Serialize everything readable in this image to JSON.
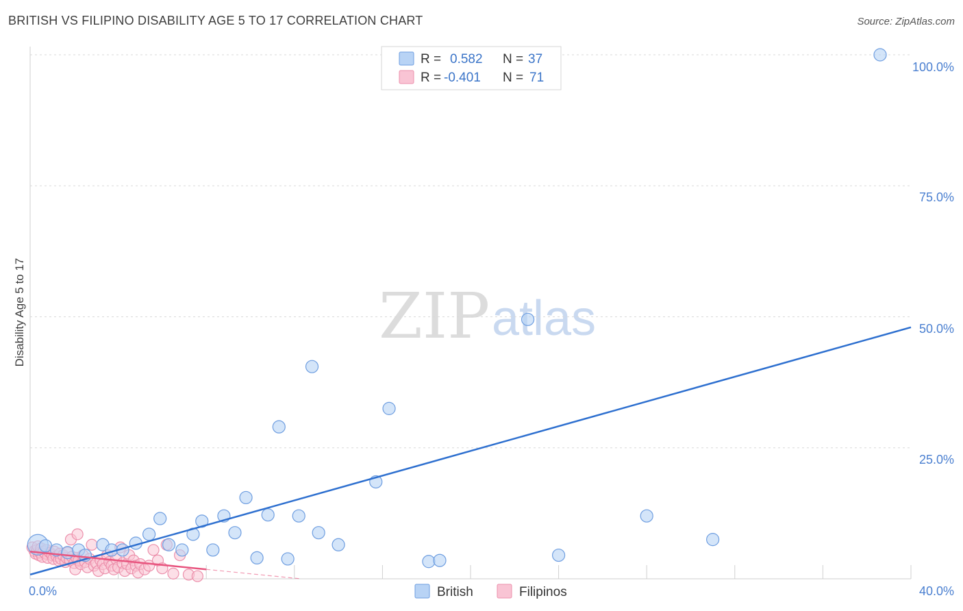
{
  "header": {
    "title": "BRITISH VS FILIPINO DISABILITY AGE 5 TO 17 CORRELATION CHART",
    "source": "Source: ZipAtlas.com"
  },
  "watermark": {
    "zip": "ZIP",
    "atlas": "atlas"
  },
  "legend_top": [
    {
      "r_label": "R =",
      "r_value": "0.582",
      "n_label": "N =",
      "n_value": "37"
    },
    {
      "r_label": "R =",
      "r_value": "-0.401",
      "n_label": "N =",
      "n_value": "71"
    }
  ],
  "legend_bottom": [
    {
      "label": "British"
    },
    {
      "label": "Filipinos"
    }
  ],
  "colors": {
    "british_fill": "#b8d3f5",
    "british_stroke": "#6d9de0",
    "british_line": "#2d6fcf",
    "filipino_fill": "#f9c4d4",
    "filipino_stroke": "#ec8fab",
    "filipino_line": "#e8557f",
    "grid": "#d8d8d8",
    "axis_label": "#4a7fd0"
  },
  "chart_data": {
    "type": "scatter",
    "title": "BRITISH VS FILIPINO DISABILITY AGE 5 TO 17 CORRELATION CHART",
    "xlabel": "",
    "ylabel": "Disability Age 5 to 17",
    "xlim": [
      0,
      40
    ],
    "ylim": [
      0,
      100
    ],
    "x_tick_labels": [
      "0.0%",
      "40.0%"
    ],
    "y_ticks": [
      25,
      50,
      75,
      100
    ],
    "y_tick_labels": [
      "25.0%",
      "50.0%",
      "75.0%",
      "100.0%"
    ],
    "series": [
      {
        "name": "British",
        "r": 0.582,
        "n": 37,
        "trend": {
          "x": [
            0,
            40
          ],
          "y": [
            0.8,
            48.0
          ]
        },
        "points": [
          {
            "x": 0.35,
            "y": 6.5,
            "s": 2
          },
          {
            "x": 0.7,
            "y": 6.3,
            "s": 1
          },
          {
            "x": 1.2,
            "y": 5.5,
            "s": 1
          },
          {
            "x": 1.7,
            "y": 5.0,
            "s": 1
          },
          {
            "x": 2.2,
            "y": 5.5,
            "s": 1
          },
          {
            "x": 3.3,
            "y": 6.5,
            "s": 1
          },
          {
            "x": 3.7,
            "y": 5.5,
            "s": 1
          },
          {
            "x": 4.2,
            "y": 5.5,
            "s": 1
          },
          {
            "x": 4.8,
            "y": 6.8,
            "s": 1
          },
          {
            "x": 5.4,
            "y": 8.5,
            "s": 1
          },
          {
            "x": 5.9,
            "y": 11.5,
            "s": 1
          },
          {
            "x": 6.3,
            "y": 6.5,
            "s": 1
          },
          {
            "x": 6.9,
            "y": 5.5,
            "s": 1
          },
          {
            "x": 7.4,
            "y": 8.5,
            "s": 1
          },
          {
            "x": 7.8,
            "y": 11.0,
            "s": 1
          },
          {
            "x": 8.3,
            "y": 5.5,
            "s": 1
          },
          {
            "x": 8.8,
            "y": 12.0,
            "s": 1
          },
          {
            "x": 9.3,
            "y": 8.8,
            "s": 1
          },
          {
            "x": 9.8,
            "y": 15.5,
            "s": 1
          },
          {
            "x": 10.3,
            "y": 4.0,
            "s": 1
          },
          {
            "x": 10.8,
            "y": 12.2,
            "s": 1
          },
          {
            "x": 11.3,
            "y": 29.0,
            "s": 1
          },
          {
            "x": 11.7,
            "y": 3.8,
            "s": 1
          },
          {
            "x": 12.2,
            "y": 12.0,
            "s": 1
          },
          {
            "x": 12.8,
            "y": 40.5,
            "s": 1
          },
          {
            "x": 13.1,
            "y": 8.8,
            "s": 1
          },
          {
            "x": 14.0,
            "y": 6.5,
            "s": 1
          },
          {
            "x": 15.7,
            "y": 18.5,
            "s": 1
          },
          {
            "x": 16.3,
            "y": 32.5,
            "s": 1
          },
          {
            "x": 18.1,
            "y": 3.3,
            "s": 1
          },
          {
            "x": 18.6,
            "y": 3.5,
            "s": 1
          },
          {
            "x": 22.6,
            "y": 49.5,
            "s": 1
          },
          {
            "x": 24.0,
            "y": 4.5,
            "s": 1
          },
          {
            "x": 28.0,
            "y": 12.0,
            "s": 1
          },
          {
            "x": 31.0,
            "y": 7.5,
            "s": 1
          },
          {
            "x": 38.6,
            "y": 100.0,
            "s": 1
          },
          {
            "x": 2.5,
            "y": 4.5,
            "s": 1
          }
        ]
      },
      {
        "name": "Filipinos",
        "r": -0.401,
        "n": 71,
        "trend": {
          "x": [
            0,
            8.0
          ],
          "y": [
            5.2,
            1.8
          ]
        },
        "trend_dashed": {
          "x": [
            8.0,
            12.3
          ],
          "y": [
            1.8,
            0.0
          ]
        },
        "points": [
          {
            "x": 0.1,
            "y": 6.0
          },
          {
            "x": 0.2,
            "y": 5.3
          },
          {
            "x": 0.25,
            "y": 4.8
          },
          {
            "x": 0.3,
            "y": 5.5
          },
          {
            "x": 0.35,
            "y": 6.2
          },
          {
            "x": 0.4,
            "y": 4.5
          },
          {
            "x": 0.45,
            "y": 5.0
          },
          {
            "x": 0.5,
            "y": 5.8
          },
          {
            "x": 0.55,
            "y": 4.2
          },
          {
            "x": 0.6,
            "y": 5.2
          },
          {
            "x": 0.7,
            "y": 4.8
          },
          {
            "x": 0.75,
            "y": 5.5
          },
          {
            "x": 0.8,
            "y": 4.0
          },
          {
            "x": 0.9,
            "y": 5.0
          },
          {
            "x": 1.0,
            "y": 4.5
          },
          {
            "x": 1.05,
            "y": 3.8
          },
          {
            "x": 1.1,
            "y": 5.2
          },
          {
            "x": 1.2,
            "y": 4.3
          },
          {
            "x": 1.3,
            "y": 3.5
          },
          {
            "x": 1.35,
            "y": 4.8
          },
          {
            "x": 1.4,
            "y": 3.8
          },
          {
            "x": 1.5,
            "y": 4.5
          },
          {
            "x": 1.6,
            "y": 3.2
          },
          {
            "x": 1.65,
            "y": 4.0
          },
          {
            "x": 1.7,
            "y": 5.0
          },
          {
            "x": 1.8,
            "y": 3.6
          },
          {
            "x": 1.85,
            "y": 7.5
          },
          {
            "x": 1.9,
            "y": 4.2
          },
          {
            "x": 2.0,
            "y": 3.0
          },
          {
            "x": 2.05,
            "y": 1.8
          },
          {
            "x": 2.1,
            "y": 4.0
          },
          {
            "x": 2.15,
            "y": 8.5
          },
          {
            "x": 2.2,
            "y": 3.5
          },
          {
            "x": 2.3,
            "y": 2.8
          },
          {
            "x": 2.4,
            "y": 4.5
          },
          {
            "x": 2.5,
            "y": 3.2
          },
          {
            "x": 2.6,
            "y": 2.2
          },
          {
            "x": 2.7,
            "y": 3.8
          },
          {
            "x": 2.8,
            "y": 6.5
          },
          {
            "x": 2.9,
            "y": 2.5
          },
          {
            "x": 3.0,
            "y": 3.0
          },
          {
            "x": 3.1,
            "y": 1.5
          },
          {
            "x": 3.2,
            "y": 3.5
          },
          {
            "x": 3.3,
            "y": 2.8
          },
          {
            "x": 3.4,
            "y": 2.0
          },
          {
            "x": 3.5,
            "y": 4.5
          },
          {
            "x": 3.6,
            "y": 3.2
          },
          {
            "x": 3.7,
            "y": 2.5
          },
          {
            "x": 3.8,
            "y": 1.8
          },
          {
            "x": 3.9,
            "y": 3.8
          },
          {
            "x": 4.0,
            "y": 2.2
          },
          {
            "x": 4.1,
            "y": 6.0
          },
          {
            "x": 4.2,
            "y": 3.0
          },
          {
            "x": 4.3,
            "y": 1.5
          },
          {
            "x": 4.4,
            "y": 2.8
          },
          {
            "x": 4.5,
            "y": 4.5
          },
          {
            "x": 4.6,
            "y": 2.0
          },
          {
            "x": 4.7,
            "y": 3.5
          },
          {
            "x": 4.8,
            "y": 2.5
          },
          {
            "x": 4.9,
            "y": 1.2
          },
          {
            "x": 5.0,
            "y": 2.8
          },
          {
            "x": 5.2,
            "y": 1.8
          },
          {
            "x": 5.4,
            "y": 2.5
          },
          {
            "x": 5.6,
            "y": 5.5
          },
          {
            "x": 5.8,
            "y": 3.5
          },
          {
            "x": 6.0,
            "y": 2.0
          },
          {
            "x": 6.2,
            "y": 6.5
          },
          {
            "x": 6.5,
            "y": 1.0
          },
          {
            "x": 6.8,
            "y": 4.5
          },
          {
            "x": 7.2,
            "y": 0.8
          },
          {
            "x": 7.6,
            "y": 0.5
          }
        ]
      }
    ]
  }
}
